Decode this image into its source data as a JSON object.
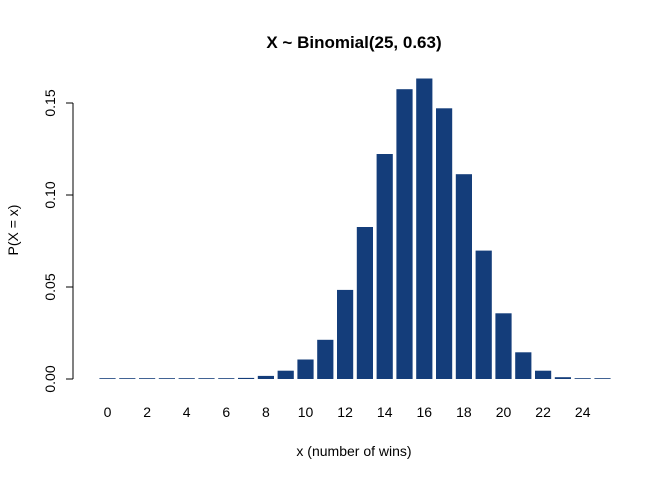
{
  "chart_data": {
    "type": "bar",
    "title": "X ~ Binomial(25, 0.63)",
    "xlabel": "x (number of wins)",
    "ylabel": "P(X = x)",
    "categories": [
      0,
      1,
      2,
      3,
      4,
      5,
      6,
      7,
      8,
      9,
      10,
      11,
      12,
      13,
      14,
      15,
      16,
      17,
      18,
      19,
      20,
      21,
      22,
      23,
      24,
      25
    ],
    "values": [
      0.0,
      0.0,
      0.0,
      0.0,
      0.0,
      0.0,
      0.0001,
      0.0006,
      0.0017,
      0.0045,
      0.0106,
      0.0213,
      0.0484,
      0.0826,
      0.1223,
      0.1575,
      0.1633,
      0.1471,
      0.1113,
      0.0698,
      0.0357,
      0.0145,
      0.0045,
      0.001,
      0.0001,
      0.0
    ],
    "xticks": [
      "0",
      "2",
      "4",
      "6",
      "8",
      "10",
      "12",
      "14",
      "16",
      "18",
      "20",
      "22",
      "24"
    ],
    "yticks": [
      "0.00",
      "0.05",
      "0.10",
      "0.15"
    ],
    "ylim": [
      0,
      0.165
    ],
    "bar_color": "#143d7a",
    "grid": false,
    "legend": "none"
  }
}
